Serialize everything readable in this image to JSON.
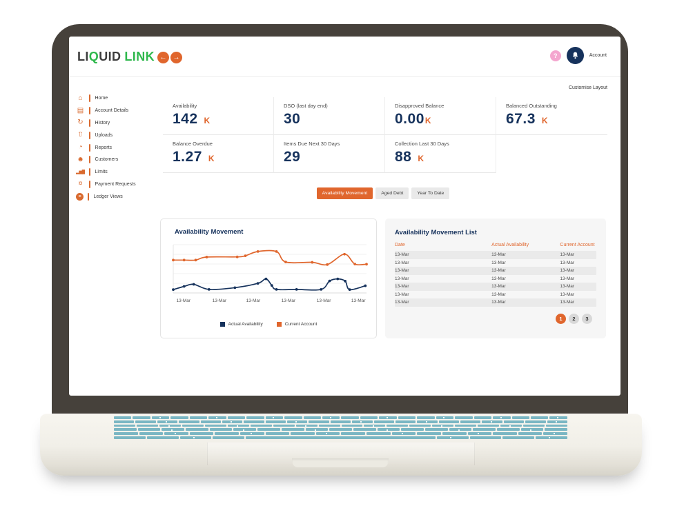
{
  "colors": {
    "orange": "#E0662D",
    "navy": "#16325C",
    "green": "#2EB84C",
    "pink": "#F4A6CF",
    "bezel": "#46413B",
    "keyboard_teal": "#7AB6C3"
  },
  "topbar": {
    "logo": {
      "li": "LI",
      "q": "Q",
      "uid": "UID",
      "link": "LINK"
    },
    "back_arrow": "←",
    "forward_arrow": "→",
    "help": "?",
    "account": "Account"
  },
  "customise_layout": "Customise Layout",
  "sidebar": {
    "items": [
      {
        "slug": "home",
        "label": "Home",
        "glyph": "⌂"
      },
      {
        "slug": "account-details",
        "label": "Account Details",
        "glyph": "▤"
      },
      {
        "slug": "history",
        "label": "History",
        "glyph": "↻"
      },
      {
        "slug": "uploads",
        "label": "Uploads",
        "glyph": "⇧"
      },
      {
        "slug": "reports",
        "label": "Reports",
        "glyph": "◔"
      },
      {
        "slug": "customers",
        "label": "Customers",
        "glyph": "☻"
      },
      {
        "slug": "limits",
        "label": "Limits",
        "glyph": "▂▅▇",
        "small": true
      },
      {
        "slug": "payment-requests",
        "label": "Payment Requests",
        "glyph": "¤"
      },
      {
        "slug": "ledger-views",
        "label": "Ledger Views",
        "glyph": "≡",
        "circle": true
      }
    ]
  },
  "kpis": [
    {
      "label": "Availability",
      "value": "142",
      "unit": "K",
      "gap": true
    },
    {
      "label": "DSO (last day end)",
      "value": "30",
      "unit": "",
      "gap": true
    },
    {
      "label": "Disapproved Balance",
      "value": "0.00",
      "unit": "K",
      "gap": false
    },
    {
      "label": "Balanced Outstanding",
      "value": "67.3",
      "unit": "K",
      "gap": true
    },
    {
      "label": "Balance Overdue",
      "value": "1.27",
      "unit": "K",
      "gap": true
    },
    {
      "label": "Items Due Next 30 Days",
      "value": "29",
      "unit": "",
      "gap": true
    },
    {
      "label": "Collection Last 30 Days",
      "value": "88",
      "unit": "K",
      "gap": true
    }
  ],
  "tabs": [
    {
      "slug": "availability-movement",
      "label": "Availability Movement",
      "active": true
    },
    {
      "slug": "aged-debt",
      "label": "Aged Debt",
      "active": false
    },
    {
      "slug": "year-to-date",
      "label": "Year To Date",
      "active": false
    }
  ],
  "chart_data": {
    "type": "line",
    "title": "Availability Movement",
    "x_tick_labels": [
      "13-Mar",
      "13-Mar",
      "13-Mar",
      "13-Mar",
      "13-Mar",
      "13-Mar"
    ],
    "ylim": [
      0,
      110
    ],
    "grid": "horizontal",
    "legend_position": "bottom",
    "series": [
      {
        "name": "Actual Availability",
        "color": "#16325C",
        "points": [
          [
            0,
            7.6
          ],
          [
            5.6,
            14.9
          ],
          [
            10.6,
            19.6
          ],
          [
            18.5,
            8
          ],
          [
            31.9,
            12
          ],
          [
            43.8,
            21.8
          ],
          [
            48,
            32
          ],
          [
            51,
            17.1
          ],
          [
            53.4,
            8
          ],
          [
            63.8,
            8
          ],
          [
            76.5,
            8
          ],
          [
            80.9,
            27.3
          ],
          [
            85.1,
            32
          ],
          [
            89,
            26.9
          ],
          [
            91.3,
            7.6
          ],
          [
            99.4,
            16.4
          ]
        ]
      },
      {
        "name": "Current Account",
        "color": "#E0662D",
        "points": [
          [
            0,
            74.9
          ],
          [
            5.6,
            74.9
          ],
          [
            11.6,
            74.9
          ],
          [
            17.3,
            81.8
          ],
          [
            33.1,
            82.2
          ],
          [
            37.3,
            84.7
          ],
          [
            43.8,
            94.5
          ],
          [
            53.4,
            94.5
          ],
          [
            58.2,
            70.5
          ],
          [
            71.9,
            69.8
          ],
          [
            79.7,
            64.7
          ],
          [
            88.6,
            88.4
          ],
          [
            94,
            65.8
          ],
          [
            100,
            65.5
          ]
        ]
      }
    ]
  },
  "list": {
    "title": "Availability Movement List",
    "columns": [
      "Date",
      "Actual Availability",
      "Current Account"
    ],
    "rows": [
      [
        "13-Mar",
        "13-Mar",
        "13-Mar"
      ],
      [
        "13-Mar",
        "13-Mar",
        "13-Mar"
      ],
      [
        "13-Mar",
        "13-Mar",
        "13-Mar"
      ],
      [
        "13-Mar",
        "13-Mar",
        "13-Mar"
      ],
      [
        "13-Mar",
        "13-Mar",
        "13-Mar"
      ],
      [
        "13-Mar",
        "13-Mar",
        "13-Mar"
      ],
      [
        "13-Mar",
        "13-Mar",
        "13-Mar"
      ]
    ],
    "pages": [
      "1",
      "2",
      "3"
    ],
    "active_page": "1"
  }
}
